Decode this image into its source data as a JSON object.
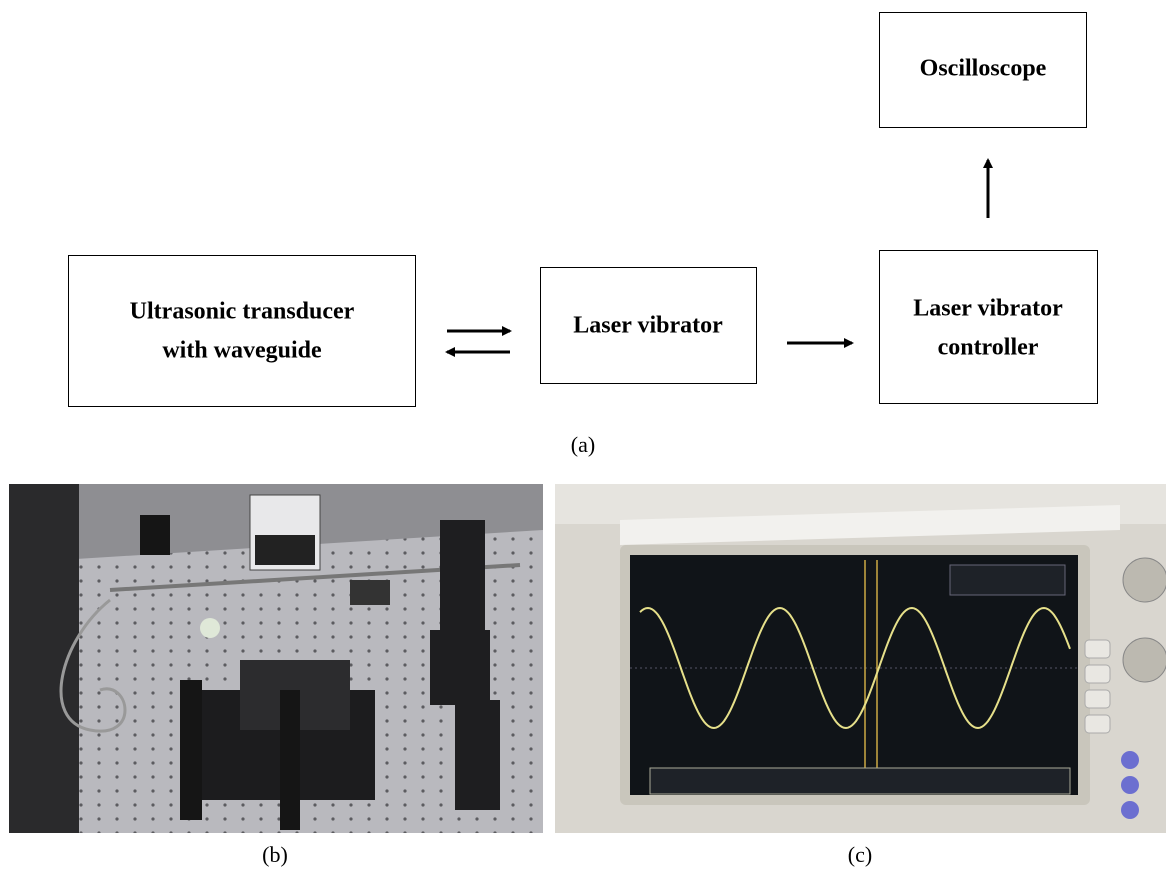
{
  "nodes": [
    {
      "lines": [
        "Oscilloscope"
      ]
    },
    {
      "lines": [
        "Ultrasonic transducer",
        "with waveguide"
      ]
    },
    {
      "lines": [
        "Laser vibrator"
      ]
    },
    {
      "lines": [
        "Laser vibrator",
        "controller"
      ]
    }
  ],
  "captions": {
    "a": "(a)",
    "b": "(b)",
    "c": "(c)"
  }
}
